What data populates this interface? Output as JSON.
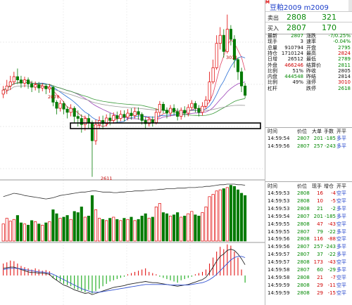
{
  "header": {
    "marker": "M",
    "title": "豆粕2009  m2009"
  },
  "quote": {
    "sell": {
      "label": "卖出",
      "price": "2808",
      "qty": "321"
    },
    "buy": {
      "label": "买入",
      "price": "2807",
      "qty": "170"
    }
  },
  "stats": [
    {
      "l1": "最新",
      "v1": "2807",
      "c1": "grn",
      "l2": "涨跌",
      "v2": "-7/0.25%",
      "c2": "grn"
    },
    {
      "l1": "现手",
      "v1": "3",
      "c1": "blk",
      "l2": "速率",
      "v2": "-0.04%",
      "c2": "grn"
    },
    {
      "l1": "总量",
      "v1": "910794",
      "c1": "blk",
      "l2": "开盘",
      "v2": "2795",
      "c2": "grn"
    },
    {
      "l1": "持仓",
      "v1": "1710124",
      "c1": "blk",
      "l2": "最高",
      "v2": "2824",
      "c2": "red"
    },
    {
      "l1": "日增",
      "v1": "26512",
      "c1": "blk",
      "l2": "最低",
      "v2": "2789",
      "c2": "grn"
    },
    {
      "l1": "外盘",
      "v1": "466246",
      "c1": "red",
      "l2": "结算价",
      "v2": "2811",
      "c2": "grn"
    },
    {
      "l1": "比例",
      "v1": "51%",
      "c1": "blk",
      "l2": "昨收",
      "v2": "2805",
      "c2": "blk"
    },
    {
      "l1": "内盘",
      "v1": "444548",
      "c1": "grn",
      "l2": "昨结",
      "v2": "2814",
      "c2": "blk"
    },
    {
      "l1": "比例",
      "v1": "49%",
      "c1": "blk",
      "l2": "涨停",
      "v2": "3010",
      "c2": "red"
    },
    {
      "l1": "杠杆",
      "v1": "",
      "c1": "blk",
      "l2": "跌停",
      "v2": "2618",
      "c2": "grn"
    }
  ],
  "table1": {
    "headers": [
      "时间",
      "价位",
      "大单",
      "手数",
      "开平"
    ],
    "rows": [
      {
        "time": "14:59:54",
        "price": "2807",
        "big": "201",
        "qty": "-185",
        "act": "多平",
        "pc": "grn",
        "qc": "grn",
        "ac": "blu"
      },
      {
        "time": "14:59:56",
        "price": "2807",
        "big": "257",
        "qty": "-243",
        "act": "多平",
        "pc": "grn",
        "qc": "grn",
        "ac": "blu"
      }
    ]
  },
  "table2": {
    "headers": [
      "时间",
      "价位",
      "现手",
      "增仓",
      "开平"
    ],
    "rows": [
      {
        "time": "14:59:53",
        "price": "2808",
        "big": "16",
        "qty": "-4",
        "act": "空平",
        "pc": "grn",
        "qc": "red",
        "ac": "blu"
      },
      {
        "time": "14:59:53",
        "price": "2808",
        "big": "10",
        "qty": "-5",
        "act": "空平",
        "pc": "grn",
        "qc": "red",
        "ac": "blu"
      },
      {
        "time": "14:59:53",
        "price": "2808",
        "big": "21",
        "qty": "-2",
        "act": "多平",
        "pc": "grn",
        "qc": "grn",
        "ac": "blu"
      },
      {
        "time": "14:59:54",
        "price": "2807",
        "big": "201",
        "qty": "-185",
        "act": "多平",
        "pc": "grn",
        "qc": "grn",
        "ac": "blu"
      },
      {
        "time": "14:59:55",
        "price": "2808",
        "big": "47",
        "qty": "-43",
        "act": "空平",
        "pc": "grn",
        "qc": "red",
        "ac": "blu"
      },
      {
        "time": "14:59:55",
        "price": "2807",
        "big": "79",
        "qty": "-22",
        "act": "多平",
        "pc": "grn",
        "qc": "grn",
        "ac": "blu"
      },
      {
        "time": "14:59:56",
        "price": "2808",
        "big": "116",
        "qty": "-88",
        "act": "空平",
        "pc": "grn",
        "qc": "red",
        "ac": "blu"
      },
      {
        "time": "14:59:56",
        "price": "2807",
        "big": "257",
        "qty": "-243",
        "act": "多平",
        "pc": "grn",
        "qc": "grn",
        "ac": "blu"
      },
      {
        "time": "14:59:57",
        "price": "2807",
        "big": "37",
        "qty": "-22",
        "act": "多平",
        "pc": "grn",
        "qc": "grn",
        "ac": "blu"
      },
      {
        "time": "14:59:57",
        "price": "2808",
        "big": "173",
        "qty": "-43",
        "act": "空平",
        "pc": "grn",
        "qc": "red",
        "ac": "blu"
      },
      {
        "time": "14:59:58",
        "price": "2807",
        "big": "60",
        "qty": "-29",
        "act": "多平",
        "pc": "grn",
        "qc": "grn",
        "ac": "blu"
      },
      {
        "time": "14:59:58",
        "price": "2808",
        "big": "21",
        "qty": "-7",
        "act": "空平",
        "pc": "grn",
        "qc": "red",
        "ac": "blu"
      },
      {
        "time": "14:59:59",
        "price": "2808",
        "big": "29",
        "qty": "-11",
        "act": "空平",
        "pc": "grn",
        "qc": "red",
        "ac": "blu"
      },
      {
        "time": "14:59:59",
        "price": "2808",
        "big": "29",
        "qty": "-15",
        "act": "空平",
        "pc": "grn",
        "qc": "red",
        "ac": "blu"
      }
    ]
  },
  "chart_data": {
    "type": "candlestick",
    "annotations": {
      "high_label": "3011",
      "low_label": "2611",
      "mid_label": "2878"
    },
    "candles": [
      {
        "o": 2815,
        "c": 2825,
        "h": 2835,
        "l": 2805
      },
      {
        "o": 2825,
        "c": 2835,
        "h": 2850,
        "l": 2815
      },
      {
        "o": 2835,
        "c": 2845,
        "h": 2860,
        "l": 2825
      },
      {
        "o": 2845,
        "c": 2858,
        "h": 2870,
        "l": 2838
      },
      {
        "o": 2858,
        "c": 2850,
        "h": 2878,
        "l": 2840
      },
      {
        "o": 2850,
        "c": 2842,
        "h": 2860,
        "l": 2830
      },
      {
        "o": 2842,
        "c": 2850,
        "h": 2858,
        "l": 2832
      },
      {
        "o": 2850,
        "c": 2840,
        "h": 2856,
        "l": 2828
      },
      {
        "o": 2840,
        "c": 2832,
        "h": 2848,
        "l": 2820
      },
      {
        "o": 2832,
        "c": 2838,
        "h": 2846,
        "l": 2824
      },
      {
        "o": 2838,
        "c": 2830,
        "h": 2845,
        "l": 2818
      },
      {
        "o": 2830,
        "c": 2835,
        "h": 2842,
        "l": 2822
      },
      {
        "o": 2835,
        "c": 2828,
        "h": 2840,
        "l": 2815
      },
      {
        "o": 2828,
        "c": 2832,
        "h": 2840,
        "l": 2818
      },
      {
        "o": 2832,
        "c": 2795,
        "h": 2835,
        "l": 2785
      },
      {
        "o": 2795,
        "c": 2780,
        "h": 2800,
        "l": 2765
      },
      {
        "o": 2780,
        "c": 2792,
        "h": 2800,
        "l": 2772
      },
      {
        "o": 2792,
        "c": 2778,
        "h": 2798,
        "l": 2765
      },
      {
        "o": 2778,
        "c": 2770,
        "h": 2785,
        "l": 2755
      },
      {
        "o": 2770,
        "c": 2780,
        "h": 2790,
        "l": 2760
      },
      {
        "o": 2780,
        "c": 2760,
        "h": 2785,
        "l": 2745
      },
      {
        "o": 2760,
        "c": 2755,
        "h": 2775,
        "l": 2735
      },
      {
        "o": 2755,
        "c": 2740,
        "h": 2765,
        "l": 2720
      },
      {
        "o": 2740,
        "c": 2755,
        "h": 2762,
        "l": 2725
      },
      {
        "o": 2755,
        "c": 2745,
        "h": 2765,
        "l": 2730
      },
      {
        "o": 2745,
        "c": 2700,
        "h": 2750,
        "l": 2611
      },
      {
        "o": 2700,
        "c": 2740,
        "h": 2752,
        "l": 2690
      },
      {
        "o": 2740,
        "c": 2750,
        "h": 2760,
        "l": 2730
      },
      {
        "o": 2750,
        "c": 2742,
        "h": 2762,
        "l": 2728
      },
      {
        "o": 2742,
        "c": 2756,
        "h": 2765,
        "l": 2735
      },
      {
        "o": 2756,
        "c": 2750,
        "h": 2768,
        "l": 2738
      },
      {
        "o": 2750,
        "c": 2762,
        "h": 2770,
        "l": 2742
      },
      {
        "o": 2762,
        "c": 2755,
        "h": 2772,
        "l": 2745
      },
      {
        "o": 2755,
        "c": 2765,
        "h": 2775,
        "l": 2748
      },
      {
        "o": 2765,
        "c": 2758,
        "h": 2775,
        "l": 2748
      },
      {
        "o": 2758,
        "c": 2768,
        "h": 2778,
        "l": 2750
      },
      {
        "o": 2768,
        "c": 2762,
        "h": 2780,
        "l": 2752
      },
      {
        "o": 2762,
        "c": 2772,
        "h": 2782,
        "l": 2755
      },
      {
        "o": 2772,
        "c": 2765,
        "h": 2782,
        "l": 2752
      },
      {
        "o": 2765,
        "c": 2750,
        "h": 2770,
        "l": 2740
      },
      {
        "o": 2750,
        "c": 2742,
        "h": 2758,
        "l": 2730
      },
      {
        "o": 2742,
        "c": 2752,
        "h": 2760,
        "l": 2735
      },
      {
        "o": 2752,
        "c": 2745,
        "h": 2760,
        "l": 2735
      },
      {
        "o": 2745,
        "c": 2770,
        "h": 2780,
        "l": 2740
      },
      {
        "o": 2770,
        "c": 2790,
        "h": 2798,
        "l": 2762
      },
      {
        "o": 2790,
        "c": 2775,
        "h": 2796,
        "l": 2768
      },
      {
        "o": 2775,
        "c": 2768,
        "h": 2782,
        "l": 2755
      },
      {
        "o": 2768,
        "c": 2780,
        "h": 2788,
        "l": 2760
      },
      {
        "o": 2780,
        "c": 2772,
        "h": 2790,
        "l": 2762
      },
      {
        "o": 2772,
        "c": 2760,
        "h": 2780,
        "l": 2750
      },
      {
        "o": 2760,
        "c": 2775,
        "h": 2782,
        "l": 2752
      },
      {
        "o": 2775,
        "c": 2768,
        "h": 2785,
        "l": 2758
      },
      {
        "o": 2768,
        "c": 2782,
        "h": 2790,
        "l": 2760
      },
      {
        "o": 2782,
        "c": 2792,
        "h": 2800,
        "l": 2775
      },
      {
        "o": 2792,
        "c": 2780,
        "h": 2798,
        "l": 2770
      },
      {
        "o": 2780,
        "c": 2770,
        "h": 2788,
        "l": 2760
      },
      {
        "o": 2770,
        "c": 2785,
        "h": 2795,
        "l": 2762
      },
      {
        "o": 2785,
        "c": 2800,
        "h": 2810,
        "l": 2778
      },
      {
        "o": 2800,
        "c": 2845,
        "h": 2870,
        "l": 2795
      },
      {
        "o": 2845,
        "c": 2880,
        "h": 2900,
        "l": 2840
      },
      {
        "o": 2880,
        "c": 2940,
        "h": 2960,
        "l": 2875
      },
      {
        "o": 2940,
        "c": 2960,
        "h": 2980,
        "l": 2925
      },
      {
        "o": 2960,
        "c": 2920,
        "h": 2975,
        "l": 2905
      },
      {
        "o": 2920,
        "c": 2975,
        "h": 3011,
        "l": 2915
      },
      {
        "o": 2975,
        "c": 2950,
        "h": 2985,
        "l": 2935
      },
      {
        "o": 2950,
        "c": 2900,
        "h": 2960,
        "l": 2880
      },
      {
        "o": 2900,
        "c": 2870,
        "h": 2905,
        "l": 2850
      },
      {
        "o": 2870,
        "c": 2835,
        "h": 2880,
        "l": 2820
      },
      {
        "o": 2835,
        "c": 2812,
        "h": 2842,
        "l": 2805
      }
    ],
    "volume": [
      30,
      40,
      35,
      38,
      45,
      32,
      30,
      28,
      36,
      34,
      30,
      28,
      32,
      34,
      55,
      48,
      40,
      42,
      45,
      38,
      52,
      50,
      60,
      42,
      44,
      80,
      55,
      40,
      38,
      36,
      40,
      42,
      38,
      36,
      40,
      38,
      42,
      36,
      38,
      44,
      48,
      40,
      42,
      60,
      66,
      50,
      48,
      44,
      46,
      50,
      42,
      44,
      48,
      52,
      46,
      44,
      50,
      60,
      78,
      82,
      88,
      90,
      92,
      94,
      98,
      96,
      90,
      84,
      80
    ],
    "volume_line": [
      78,
      80,
      82,
      84,
      83,
      82,
      80,
      79,
      78,
      77,
      76,
      75,
      74,
      75,
      76,
      78,
      80,
      81,
      82,
      83,
      84,
      85,
      86,
      86,
      87,
      88,
      88,
      87,
      86,
      86,
      86,
      85,
      85,
      86,
      86,
      87,
      87,
      88,
      88,
      88,
      89,
      89,
      90,
      90,
      91,
      91,
      92,
      92,
      92,
      93,
      93,
      93,
      94,
      94,
      94,
      95,
      95,
      96,
      96,
      97,
      98,
      99,
      99,
      100,
      100,
      100,
      99,
      99,
      98
    ],
    "macd_hist": [
      20,
      22,
      25,
      24,
      20,
      16,
      14,
      12,
      10,
      12,
      10,
      8,
      9,
      7,
      -4,
      -8,
      -10,
      -14,
      -16,
      -18,
      -22,
      -24,
      -26,
      -28,
      -24,
      -30,
      -26,
      -22,
      -18,
      -14,
      -10,
      -8,
      -6,
      -4,
      -2,
      2,
      4,
      6,
      8,
      10,
      12,
      6,
      4,
      2,
      -2,
      -4,
      -6,
      -8,
      -10,
      -12,
      -8,
      -6,
      -4,
      -2,
      2,
      4,
      6,
      10,
      20,
      30,
      40,
      48,
      44,
      52,
      50,
      40,
      30,
      10,
      -12
    ],
    "macd_dif": [
      12,
      13,
      14,
      14,
      12,
      10,
      8,
      6,
      5,
      5,
      4,
      4,
      3,
      2,
      -4,
      -8,
      -12,
      -16,
      -18,
      -21,
      -24,
      -26,
      -28,
      -30,
      -29,
      -32,
      -30,
      -28,
      -26,
      -24,
      -22,
      -20,
      -19,
      -18,
      -17,
      -15,
      -14,
      -13,
      -12,
      -11,
      -10,
      -11,
      -12,
      -12,
      -13,
      -14,
      -15,
      -16,
      -17,
      -18,
      -17,
      -16,
      -15,
      -13,
      -11,
      -9,
      -7,
      -3,
      5,
      14,
      24,
      32,
      36,
      42,
      44,
      42,
      36,
      28,
      18
    ],
    "macd_dea": [
      10,
      11,
      12,
      12,
      12,
      11,
      10,
      9,
      8,
      7,
      6,
      6,
      5,
      4,
      2,
      -1,
      -4,
      -7,
      -10,
      -13,
      -16,
      -19,
      -22,
      -24,
      -26,
      -28,
      -28,
      -28,
      -27,
      -26,
      -25,
      -24,
      -23,
      -22,
      -21,
      -20,
      -19,
      -18,
      -17,
      -16,
      -15,
      -15,
      -15,
      -15,
      -15,
      -15,
      -15,
      -16,
      -16,
      -16,
      -16,
      -16,
      -16,
      -15,
      -14,
      -13,
      -12,
      -10,
      -7,
      -3,
      2,
      8,
      14,
      20,
      26,
      30,
      32,
      32,
      30
    ]
  }
}
